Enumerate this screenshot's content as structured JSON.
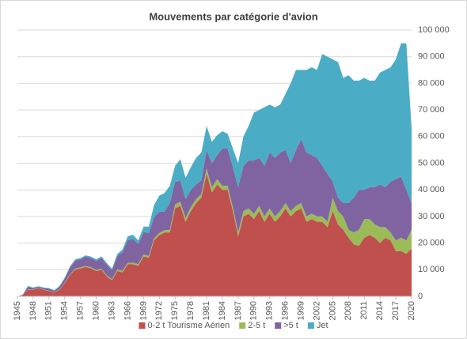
{
  "chart_data": {
    "type": "stacked_area",
    "title": "Mouvements par catégorie d'avion",
    "categories": [
      "1945",
      null,
      null,
      "1948",
      null,
      null,
      "1951",
      null,
      null,
      "1954",
      null,
      null,
      "1957",
      null,
      null,
      "1960",
      null,
      null,
      "1963",
      null,
      null,
      "1966",
      null,
      null,
      "1969",
      null,
      null,
      "1972",
      null,
      null,
      "1975",
      null,
      null,
      "1978",
      null,
      null,
      "1981",
      null,
      null,
      "1984",
      null,
      null,
      "1987",
      null,
      null,
      "1990",
      null,
      null,
      "1993",
      null,
      null,
      "1996",
      null,
      null,
      "1999",
      null,
      null,
      "2002",
      null,
      null,
      "2005",
      null,
      null,
      "2008",
      null,
      null,
      "2011",
      null,
      null,
      "2014",
      null,
      null,
      "2017",
      null,
      null,
      "2020"
    ],
    "series": [
      {
        "name": "0-2 t Tourisme Aérien",
        "color": "#c0504d",
        "values": [
          0,
          500,
          2500,
          2500,
          3000,
          2500,
          2000,
          1500,
          2500,
          5000,
          8000,
          10000,
          10500,
          11000,
          10500,
          9500,
          10000,
          7500,
          6000,
          9500,
          9000,
          12000,
          12000,
          11500,
          15000,
          14500,
          21000,
          23000,
          24000,
          24000,
          33000,
          34000,
          28000,
          32000,
          35000,
          37000,
          46000,
          39000,
          42000,
          40000,
          40000,
          32000,
          22500,
          30000,
          31000,
          29000,
          32000,
          28000,
          31000,
          28000,
          30000,
          33000,
          30000,
          32000,
          33000,
          28000,
          29000,
          28000,
          28000,
          26000,
          32000,
          27000,
          25000,
          22000,
          19500,
          19000,
          22000,
          23000,
          22000,
          20000,
          22000,
          21000,
          17000,
          17000,
          16000,
          18000
        ]
      },
      {
        "name": "2-5 t",
        "color": "#9bbb59",
        "values": [
          0,
          0,
          100,
          100,
          100,
          100,
          100,
          100,
          100,
          200,
          300,
          400,
          400,
          400,
          400,
          400,
          400,
          400,
          400,
          600,
          600,
          600,
          600,
          600,
          700,
          700,
          800,
          800,
          800,
          1000,
          1500,
          1500,
          1500,
          1500,
          1500,
          1500,
          2000,
          2000,
          2000,
          1500,
          1500,
          1500,
          1500,
          2000,
          2000,
          2000,
          2000,
          2000,
          2000,
          2000,
          2000,
          2000,
          2000,
          2000,
          2000,
          2000,
          2000,
          2000,
          2000,
          2000,
          5000,
          5000,
          5000,
          3000,
          4500,
          6000,
          7000,
          6000,
          5000,
          6000,
          4000,
          3000,
          4000,
          5000,
          5000,
          7000
        ]
      },
      {
        "name": ">5 t",
        "color": "#8064a2",
        "values": [
          0,
          100,
          1000,
          500,
          500,
          500,
          800,
          500,
          1000,
          1500,
          2500,
          3000,
          3000,
          3500,
          3500,
          3500,
          4000,
          4000,
          3500,
          5000,
          7000,
          8500,
          9000,
          7500,
          8500,
          8500,
          8000,
          8000,
          7000,
          10000,
          8500,
          8000,
          7000,
          6500,
          5500,
          5000,
          7000,
          9000,
          9000,
          14000,
          14000,
          15000,
          17000,
          17000,
          18000,
          20000,
          18000,
          19000,
          21000,
          22000,
          22000,
          20000,
          18000,
          21000,
          24000,
          24000,
          22000,
          22000,
          19000,
          18000,
          6000,
          5000,
          5000,
          10000,
          13000,
          15000,
          11000,
          12000,
          14000,
          16000,
          15000,
          19000,
          23000,
          23000,
          19000,
          10000
        ]
      },
      {
        "name": "Jet",
        "color": "#4bacc6",
        "values": [
          0,
          0,
          300,
          200,
          200,
          200,
          200,
          200,
          300,
          300,
          400,
          500,
          500,
          500,
          500,
          500,
          600,
          600,
          500,
          800,
          1000,
          1500,
          1500,
          1400,
          2000,
          2500,
          4500,
          6000,
          7000,
          6500,
          6000,
          8000,
          8000,
          8500,
          10000,
          10500,
          9000,
          8000,
          7500,
          6500,
          5500,
          7000,
          9000,
          11000,
          13000,
          18000,
          18000,
          22000,
          18000,
          19000,
          18000,
          21000,
          30000,
          30000,
          26000,
          31000,
          33000,
          33000,
          42000,
          44000,
          46000,
          51000,
          47000,
          48000,
          44000,
          41000,
          42000,
          40000,
          40000,
          42000,
          44000,
          43000,
          45000,
          50000,
          55000,
          28000
        ]
      }
    ],
    "ylim": [
      0,
      100000
    ],
    "yticks": [
      0,
      {
        "value": 10000,
        "label": "10 000"
      },
      {
        "value": 20000,
        "label": "20 000"
      },
      {
        "value": 30000,
        "label": "30 000"
      },
      {
        "value": 40000,
        "label": "40 000"
      },
      {
        "value": 50000,
        "label": "50 000"
      },
      {
        "value": 60000,
        "label": "60 000"
      },
      {
        "value": 70000,
        "label": "70 000"
      },
      {
        "value": 80000,
        "label": "80 000"
      },
      {
        "value": 90000,
        "label": "90 000"
      },
      {
        "value": 100000,
        "label": "100 000"
      }
    ],
    "grid": true,
    "y_axis_side": "right",
    "legend": "bottom"
  }
}
